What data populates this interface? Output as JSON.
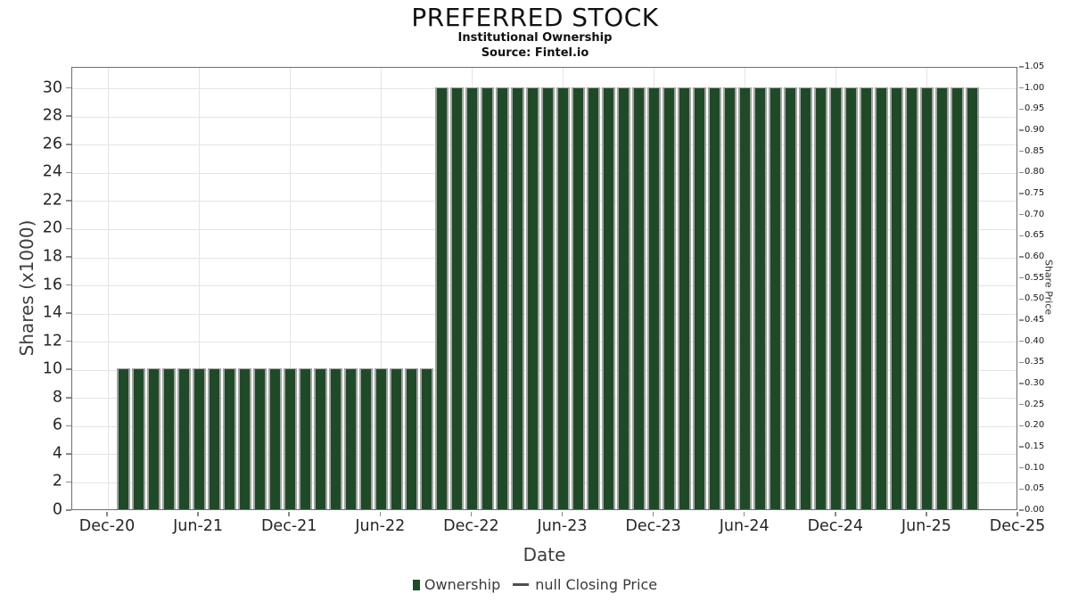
{
  "title": "PREFERRED STOCK",
  "subtitle": "Institutional Ownership",
  "source": "Source: Fintel.io",
  "axes": {
    "x": {
      "label": "Date",
      "ticks": [
        "Dec-20",
        "Jun-21",
        "Dec-21",
        "Jun-22",
        "Dec-22",
        "Jun-23",
        "Dec-23",
        "Jun-24",
        "Dec-24",
        "Jun-25",
        "Dec-25"
      ]
    },
    "y_left": {
      "label": "Shares (x1000)",
      "min": 0,
      "max": 31.5,
      "ticks": [
        0,
        2,
        4,
        6,
        8,
        10,
        12,
        14,
        16,
        18,
        20,
        22,
        24,
        26,
        28,
        30
      ]
    },
    "y_right": {
      "label": "Share Price",
      "min": 0,
      "max": 1.05,
      "ticks": [
        "0.00",
        "0.05",
        "0.10",
        "0.15",
        "0.20",
        "0.25",
        "0.30",
        "0.35",
        "0.40",
        "0.45",
        "0.50",
        "0.55",
        "0.60",
        "0.65",
        "0.70",
        "0.75",
        "0.80",
        "0.85",
        "0.90",
        "0.95",
        "1.00",
        "1.05"
      ]
    }
  },
  "legend": {
    "ownership_label": "Ownership",
    "price_label": "null Closing Price"
  },
  "colors": {
    "bar_fill": "#1f4a28",
    "bar_edge": "#a3a3a3",
    "grid": "#e4e4e4",
    "spine": "#6e6e6e",
    "tick_text": "#262626",
    "axis_label_text": "#3d3d3d",
    "legend_line": "#4d4d4d"
  },
  "chart_data": {
    "type": "bar",
    "title": "PREFERRED STOCK",
    "subtitle": "Institutional Ownership",
    "xlabel": "Date",
    "ylabel_left": "Shares (x1000)",
    "ylabel_right": "Share Price",
    "ylim_left": [
      0,
      31.5
    ],
    "ylim_right": [
      0,
      1.05
    ],
    "grid": true,
    "legend_position": "bottom-center",
    "x_unit": "month",
    "x_start_month_offset_from_dec20": 1,
    "categories": [
      "Jan-21",
      "Feb-21",
      "Mar-21",
      "Apr-21",
      "May-21",
      "Jun-21",
      "Jul-21",
      "Aug-21",
      "Sep-21",
      "Oct-21",
      "Nov-21",
      "Dec-21",
      "Jan-22",
      "Feb-22",
      "Mar-22",
      "Apr-22",
      "May-22",
      "Jun-22",
      "Jul-22",
      "Aug-22",
      "Sep-22",
      "Oct-22",
      "Nov-22",
      "Dec-22",
      "Jan-23",
      "Feb-23",
      "Mar-23",
      "Apr-23",
      "May-23",
      "Jun-23",
      "Jul-23",
      "Aug-23",
      "Sep-23",
      "Oct-23",
      "Nov-23",
      "Dec-23",
      "Jan-24",
      "Feb-24",
      "Mar-24",
      "Apr-24",
      "May-24",
      "Jun-24",
      "Jul-24",
      "Aug-24",
      "Sep-24",
      "Oct-24",
      "Nov-24",
      "Dec-24",
      "Jan-25",
      "Feb-25",
      "Mar-25",
      "Apr-25",
      "May-25",
      "Jun-25",
      "Jul-25",
      "Aug-25",
      "Sep-25"
    ],
    "series": [
      {
        "name": "Ownership",
        "axis": "left",
        "units": "shares x1000",
        "values": [
          10,
          10,
          10,
          10,
          10,
          10,
          10,
          10,
          10,
          10,
          10,
          10,
          10,
          10,
          10,
          10,
          10,
          10,
          10,
          10,
          10,
          30,
          30,
          30,
          30,
          30,
          30,
          30,
          30,
          30,
          30,
          30,
          30,
          30,
          30,
          30,
          30,
          30,
          30,
          30,
          30,
          30,
          30,
          30,
          30,
          30,
          30,
          30,
          30,
          30,
          30,
          30,
          30,
          30,
          30,
          30,
          30
        ]
      },
      {
        "name": "null Closing Price",
        "axis": "right",
        "values": []
      }
    ]
  }
}
